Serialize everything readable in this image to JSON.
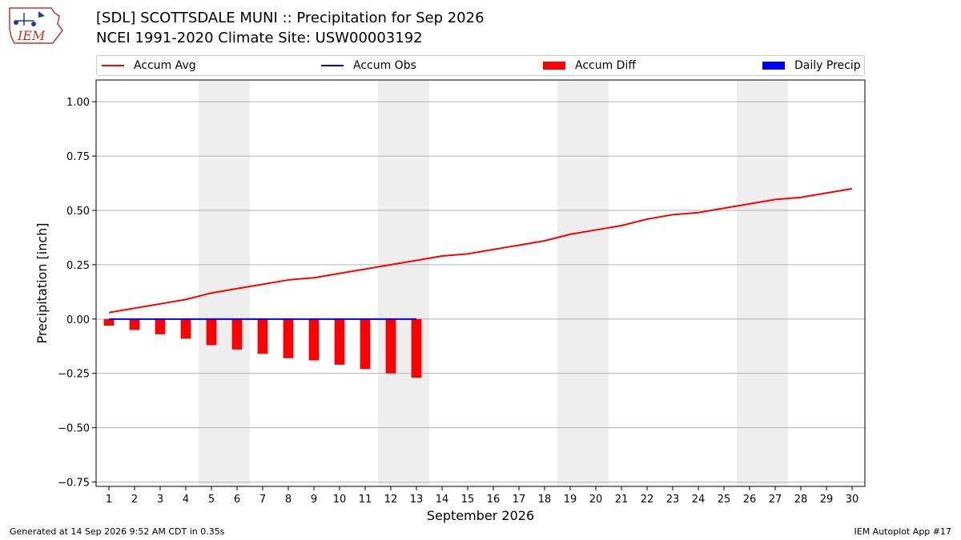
{
  "header": {
    "logo_text": "IEM",
    "title": "[SDL] SCOTTSDALE MUNI :: Precipitation for Sep 2026",
    "subtitle": "NCEI 1991-2020 Climate Site: USW00003192"
  },
  "legend": {
    "items": [
      {
        "label": "Accum Avg",
        "kind": "line",
        "color": "#ff0000"
      },
      {
        "label": "Accum Obs",
        "kind": "line",
        "color": "#0000ff"
      },
      {
        "label": "Accum Diff",
        "kind": "box",
        "color": "#ff0000"
      },
      {
        "label": "Daily Precip",
        "kind": "box",
        "color": "#0000ff"
      }
    ]
  },
  "footer": {
    "left": "Generated at 14 Sep 2026 9:52 AM CDT in 0.35s",
    "right": "IEM Autoplot App #17"
  },
  "chart_data": {
    "type": "line",
    "xlabel": "September 2026",
    "ylabel": "Precipitation [inch]",
    "xlim": [
      0.5,
      30.5
    ],
    "ylim": [
      -0.77,
      1.1
    ],
    "yticks": [
      -0.75,
      -0.5,
      -0.25,
      0.0,
      0.25,
      0.5,
      0.75,
      1.0
    ],
    "ytick_labels": [
      "−0.75",
      "−0.50",
      "−0.25",
      "0.00",
      "0.25",
      "0.50",
      "0.75",
      "1.00"
    ],
    "x": [
      1,
      2,
      3,
      4,
      5,
      6,
      7,
      8,
      9,
      10,
      11,
      12,
      13,
      14,
      15,
      16,
      17,
      18,
      19,
      20,
      21,
      22,
      23,
      24,
      25,
      26,
      27,
      28,
      29,
      30
    ],
    "x_tick_labels": [
      "1",
      "2",
      "3",
      "4",
      "5",
      "6",
      "7",
      "8",
      "9",
      "10",
      "11",
      "12",
      "13",
      "14",
      "15",
      "16",
      "17",
      "18",
      "19",
      "20",
      "21",
      "22",
      "23",
      "24",
      "25",
      "26",
      "27",
      "28",
      "29",
      "30"
    ],
    "weekend_shading": [
      [
        4.5,
        6.5
      ],
      [
        11.5,
        13.5
      ],
      [
        18.5,
        20.5
      ],
      [
        25.5,
        27.5
      ]
    ],
    "grid": "horizontal",
    "series": [
      {
        "name": "Accum Avg",
        "type": "line",
        "color": "#ff0000",
        "x": [
          1,
          2,
          3,
          4,
          5,
          6,
          7,
          8,
          9,
          10,
          11,
          12,
          13,
          14,
          15,
          16,
          17,
          18,
          19,
          20,
          21,
          22,
          23,
          24,
          25,
          26,
          27,
          28,
          29,
          30
        ],
        "values": [
          0.03,
          0.05,
          0.07,
          0.09,
          0.12,
          0.14,
          0.16,
          0.18,
          0.19,
          0.21,
          0.23,
          0.25,
          0.27,
          0.29,
          0.3,
          0.32,
          0.34,
          0.36,
          0.39,
          0.41,
          0.43,
          0.46,
          0.48,
          0.49,
          0.51,
          0.53,
          0.55,
          0.56,
          0.58,
          0.6
        ]
      },
      {
        "name": "Accum Obs",
        "type": "line",
        "color": "#0000ff",
        "x": [
          1,
          2,
          3,
          4,
          5,
          6,
          7,
          8,
          9,
          10,
          11,
          12,
          13
        ],
        "values": [
          0,
          0,
          0,
          0,
          0,
          0,
          0,
          0,
          0,
          0,
          0,
          0,
          0
        ]
      },
      {
        "name": "Accum Diff",
        "type": "bar",
        "color": "#ff0000",
        "x": [
          1,
          2,
          3,
          4,
          5,
          6,
          7,
          8,
          9,
          10,
          11,
          12,
          13
        ],
        "values": [
          -0.03,
          -0.05,
          -0.07,
          -0.09,
          -0.12,
          -0.14,
          -0.16,
          -0.18,
          -0.19,
          -0.21,
          -0.23,
          -0.25,
          -0.27
        ]
      },
      {
        "name": "Daily Precip",
        "type": "bar",
        "color": "#0000ff",
        "x": [
          1,
          2,
          3,
          4,
          5,
          6,
          7,
          8,
          9,
          10,
          11,
          12,
          13
        ],
        "values": [
          0,
          0,
          0,
          0,
          0,
          0,
          0,
          0,
          0,
          0,
          0,
          0,
          0
        ]
      }
    ]
  }
}
